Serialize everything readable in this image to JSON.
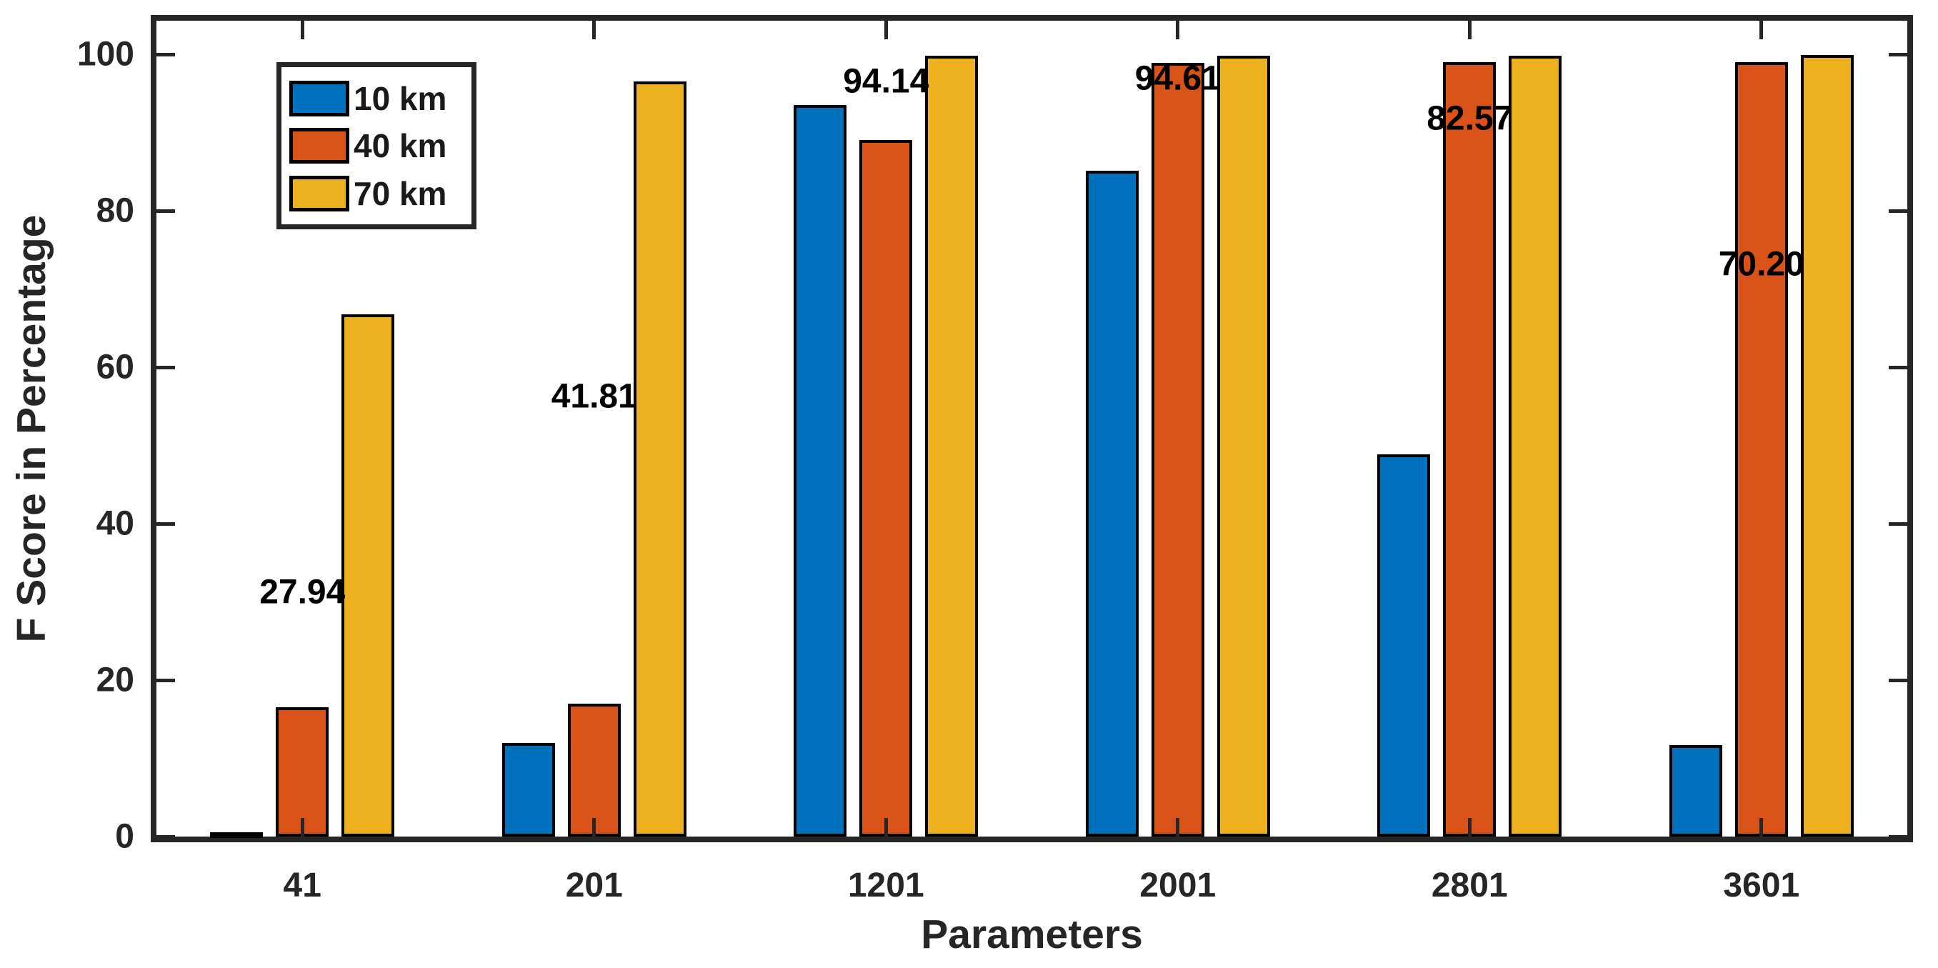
{
  "chart_data": {
    "type": "bar",
    "title": "",
    "xlabel": "Parameters",
    "ylabel": "F Score in Percentage",
    "categories": [
      "41",
      "201",
      "1201",
      "2001",
      "2801",
      "3601"
    ],
    "series": [
      {
        "name": "10 km",
        "color": "#0072BD",
        "values": [
          0.52,
          11.95,
          93.55,
          85.1,
          48.85,
          11.68
        ]
      },
      {
        "name": "40 km",
        "color": "#D95319",
        "values": [
          16.52,
          16.98,
          89.02,
          98.9,
          99.02,
          99.02
        ]
      },
      {
        "name": "70 km",
        "color": "#EDB120",
        "values": [
          66.78,
          96.5,
          99.85,
          99.83,
          99.84,
          99.9
        ]
      }
    ],
    "annotations": [
      {
        "text": "27.94",
        "category_index": 0,
        "y_value": 31.2
      },
      {
        "text": "41.81",
        "category_index": 1,
        "y_value": 56.3
      },
      {
        "text": "94.14",
        "category_index": 2,
        "y_value": 96.5
      },
      {
        "text": "94.61",
        "category_index": 3,
        "y_value": 96.9
      },
      {
        "text": "82.57",
        "category_index": 4,
        "y_value": 91.8
      },
      {
        "text": "70.20",
        "category_index": 5,
        "y_value": 73.2
      }
    ],
    "yticks": [
      0,
      20,
      40,
      60,
      80,
      100
    ],
    "ylim": [
      0,
      104.3
    ],
    "grid": false,
    "legend_position": "top-left",
    "axis_color": "#262626",
    "bar_edge_color": "#000000",
    "background_color": "#FFFFFF"
  }
}
